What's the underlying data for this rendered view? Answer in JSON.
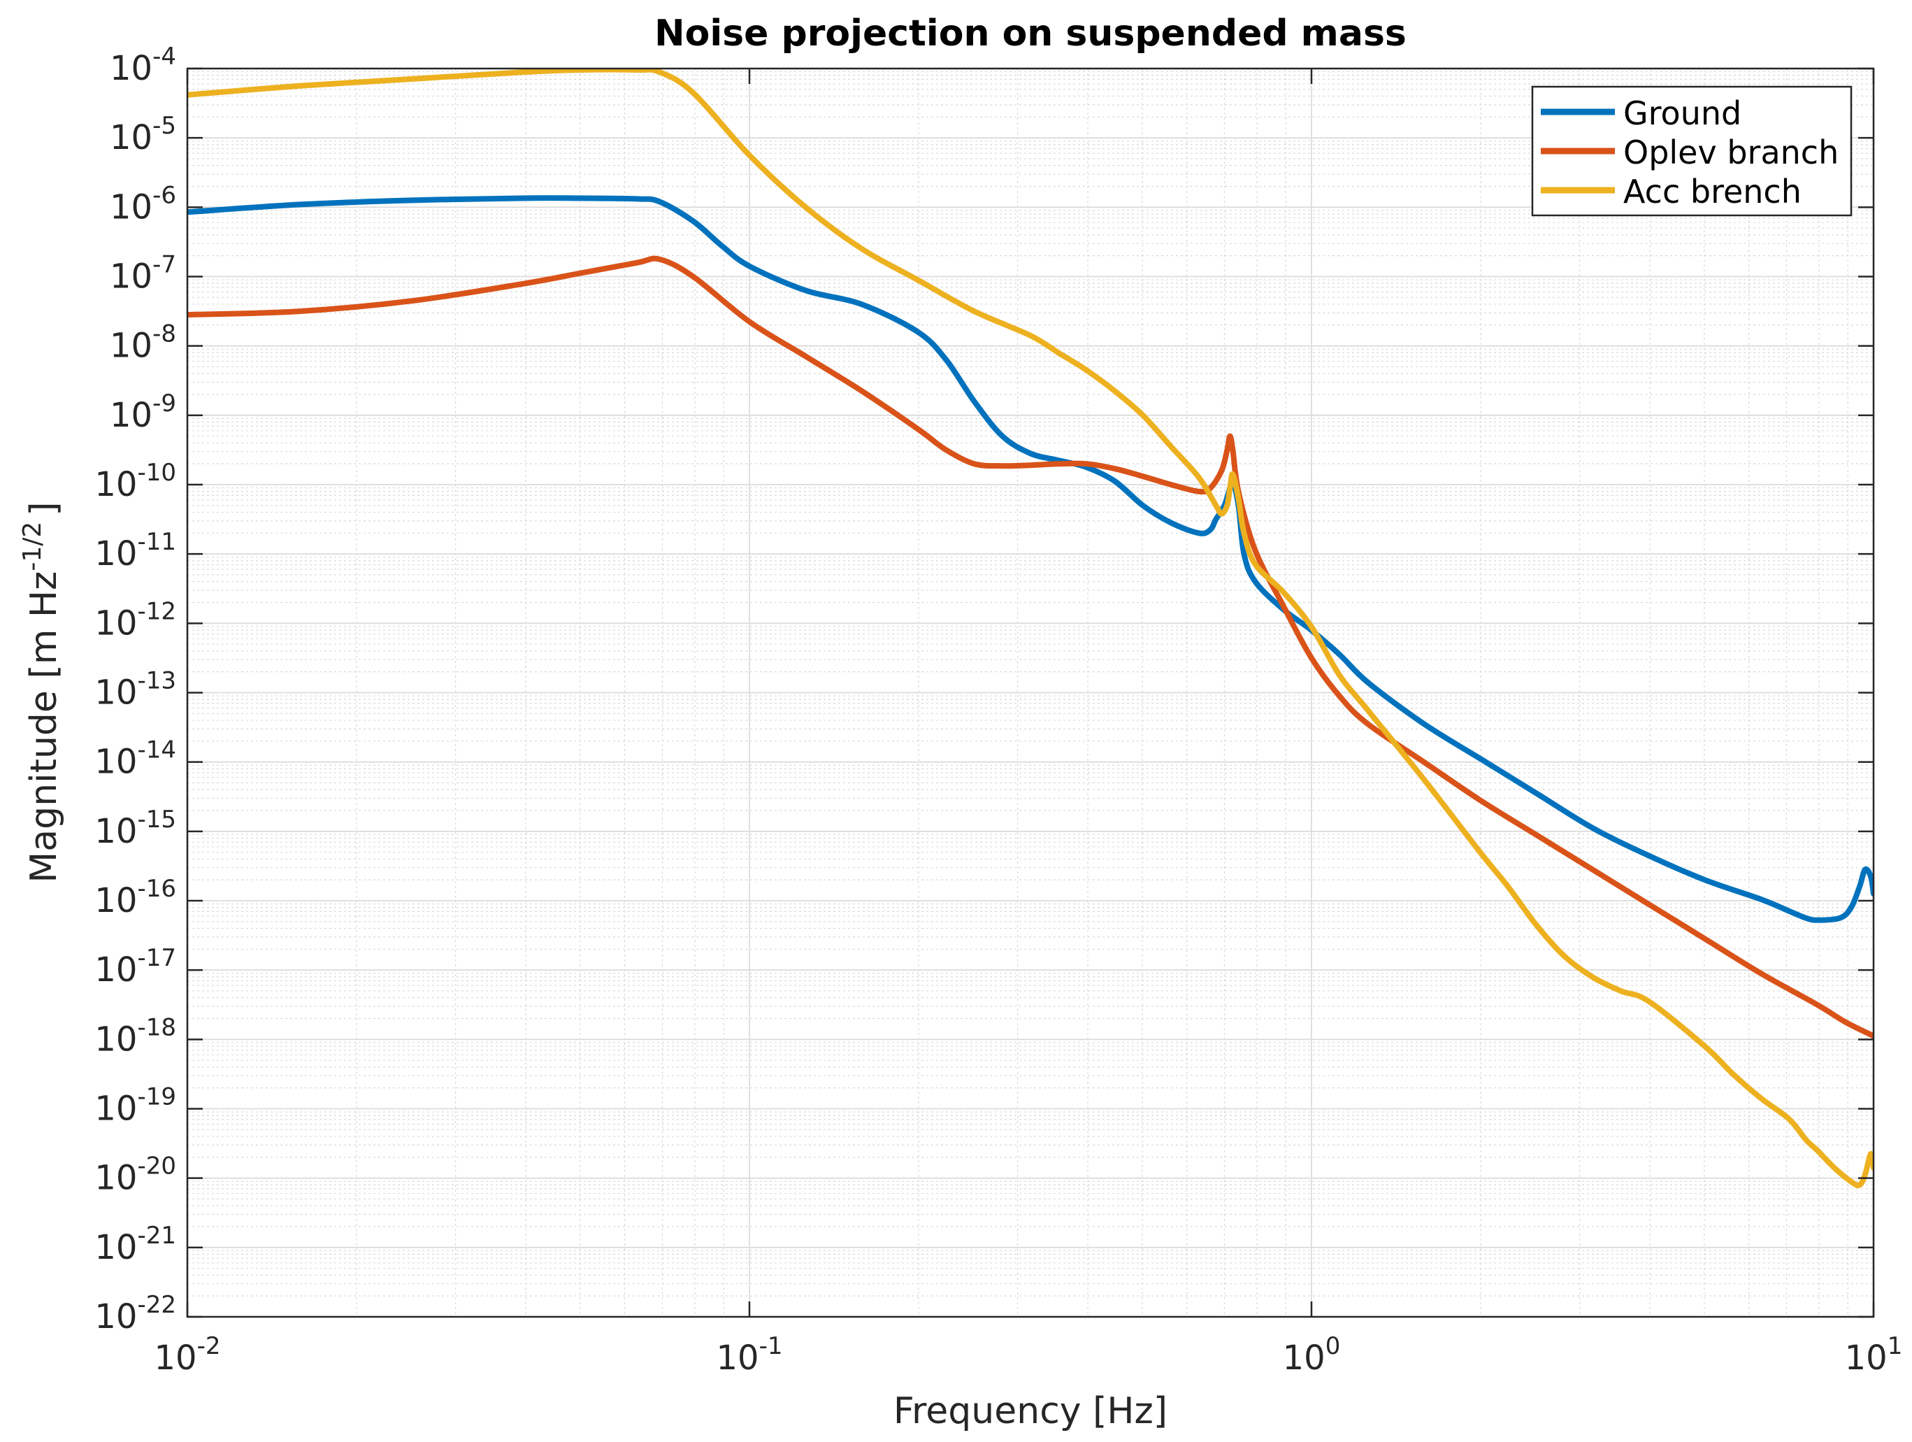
{
  "chart_data": {
    "type": "line",
    "title": "Noise projection on suspended mass",
    "xlabel": "Frequency [Hz]",
    "ylabel": {
      "prefix": "Magnitude [m Hz",
      "superscript": "-1/2",
      "suffix": "]"
    },
    "xscale": "log",
    "yscale": "log",
    "xlim": [
      0.01,
      10
    ],
    "ylim": [
      1e-22,
      0.0001
    ],
    "grid": true,
    "minor_grid": true,
    "legend_location": "top-right",
    "x_ticks": [
      {
        "base": "10",
        "exp": "-2",
        "value": 0.01
      },
      {
        "base": "10",
        "exp": "-1",
        "value": 0.1
      },
      {
        "base": "10",
        "exp": "0",
        "value": 1
      },
      {
        "base": "10",
        "exp": "1",
        "value": 10
      }
    ],
    "y_ticks": [
      {
        "base": "10",
        "exp": "-4",
        "value": -4
      },
      {
        "base": "10",
        "exp": "-5",
        "value": -5
      },
      {
        "base": "10",
        "exp": "-6",
        "value": -6
      },
      {
        "base": "10",
        "exp": "-7",
        "value": -7
      },
      {
        "base": "10",
        "exp": "-8",
        "value": -8
      },
      {
        "base": "10",
        "exp": "-9",
        "value": -9
      },
      {
        "base": "10",
        "exp": "-10",
        "value": -10
      },
      {
        "base": "10",
        "exp": "-11",
        "value": -11
      },
      {
        "base": "10",
        "exp": "-12",
        "value": -12
      },
      {
        "base": "10",
        "exp": "-13",
        "value": -13
      },
      {
        "base": "10",
        "exp": "-14",
        "value": -14
      },
      {
        "base": "10",
        "exp": "-15",
        "value": -15
      },
      {
        "base": "10",
        "exp": "-16",
        "value": -16
      },
      {
        "base": "10",
        "exp": "-17",
        "value": -17
      },
      {
        "base": "10",
        "exp": "-18",
        "value": -18
      },
      {
        "base": "10",
        "exp": "-19",
        "value": -19
      },
      {
        "base": "10",
        "exp": "-20",
        "value": -20
      },
      {
        "base": "10",
        "exp": "-21",
        "value": -21
      },
      {
        "base": "10",
        "exp": "-22",
        "value": -22
      }
    ],
    "series": [
      {
        "name": "Ground",
        "color": "#0072BD",
        "log10_x": [
          -2.0,
          -1.8,
          -1.6,
          -1.4,
          -1.3,
          -1.2,
          -1.16,
          -1.1,
          -1.05,
          -1.0,
          -0.9,
          -0.8,
          -0.7,
          -0.65,
          -0.6,
          -0.55,
          -0.5,
          -0.45,
          -0.4,
          -0.35,
          -0.3,
          -0.25,
          -0.2,
          -0.18,
          -0.17,
          -0.155,
          -0.145,
          -0.14,
          -0.13,
          -0.12,
          -0.1,
          -0.05,
          0.0,
          0.05,
          0.1,
          0.2,
          0.3,
          0.4,
          0.5,
          0.6,
          0.7,
          0.8,
          0.85,
          0.88,
          0.9,
          0.94,
          0.96,
          0.975,
          0.985,
          0.995,
          1.0
        ],
        "log10_y": [
          -6.07,
          -5.96,
          -5.9,
          -5.87,
          -5.87,
          -5.88,
          -5.92,
          -6.2,
          -6.55,
          -6.85,
          -7.2,
          -7.4,
          -7.8,
          -8.2,
          -8.8,
          -9.3,
          -9.55,
          -9.65,
          -9.75,
          -9.95,
          -10.3,
          -10.55,
          -10.7,
          -10.65,
          -10.5,
          -10.3,
          -10.05,
          -9.95,
          -10.3,
          -11.0,
          -11.4,
          -11.8,
          -12.1,
          -12.45,
          -12.85,
          -13.45,
          -13.95,
          -14.45,
          -14.95,
          -15.35,
          -15.7,
          -15.98,
          -16.15,
          -16.25,
          -16.28,
          -16.25,
          -16.1,
          -15.8,
          -15.55,
          -15.65,
          -15.9
        ]
      },
      {
        "name": "Oplev branch",
        "color": "#D95319",
        "log10_x": [
          -2.0,
          -1.8,
          -1.6,
          -1.4,
          -1.3,
          -1.2,
          -1.16,
          -1.1,
          -1.0,
          -0.9,
          -0.8,
          -0.7,
          -0.65,
          -0.6,
          -0.55,
          -0.5,
          -0.45,
          -0.4,
          -0.35,
          -0.3,
          -0.25,
          -0.2,
          -0.18,
          -0.16,
          -0.15,
          -0.145,
          -0.14,
          -0.13,
          -0.1,
          -0.05,
          0.0,
          0.05,
          0.1,
          0.2,
          0.3,
          0.4,
          0.5,
          0.6,
          0.7,
          0.8,
          0.9,
          0.95,
          1.0
        ],
        "log10_y": [
          -7.55,
          -7.5,
          -7.35,
          -7.1,
          -6.95,
          -6.8,
          -6.75,
          -7.0,
          -7.65,
          -8.15,
          -8.65,
          -9.2,
          -9.5,
          -9.7,
          -9.73,
          -9.72,
          -9.7,
          -9.7,
          -9.77,
          -9.88,
          -10.0,
          -10.1,
          -10.05,
          -9.8,
          -9.5,
          -9.3,
          -9.5,
          -10.1,
          -10.95,
          -11.75,
          -12.5,
          -13.05,
          -13.45,
          -14.0,
          -14.55,
          -15.05,
          -15.55,
          -16.05,
          -16.55,
          -17.05,
          -17.5,
          -17.75,
          -17.95
        ]
      },
      {
        "name": "Acc brench",
        "color": "#EDB120",
        "log10_x": [
          -2.0,
          -1.8,
          -1.6,
          -1.4,
          -1.3,
          -1.2,
          -1.16,
          -1.1,
          -1.0,
          -0.9,
          -0.8,
          -0.7,
          -0.6,
          -0.5,
          -0.45,
          -0.4,
          -0.35,
          -0.3,
          -0.25,
          -0.2,
          -0.17,
          -0.16,
          -0.15,
          -0.145,
          -0.14,
          -0.13,
          -0.12,
          -0.1,
          -0.05,
          0.0,
          0.05,
          0.1,
          0.2,
          0.3,
          0.35,
          0.4,
          0.45,
          0.5,
          0.55,
          0.6,
          0.7,
          0.75,
          0.8,
          0.85,
          0.88,
          0.9,
          0.93,
          0.96,
          0.975,
          0.985,
          0.995,
          1.0
        ],
        "log10_y": [
          -4.38,
          -4.25,
          -4.15,
          -4.05,
          -4.02,
          -4.02,
          -4.05,
          -4.35,
          -5.25,
          -6.0,
          -6.6,
          -7.05,
          -7.5,
          -7.85,
          -8.1,
          -8.35,
          -8.65,
          -9.0,
          -9.45,
          -9.9,
          -10.3,
          -10.42,
          -10.3,
          -10.05,
          -9.85,
          -10.2,
          -10.7,
          -11.15,
          -11.55,
          -12.05,
          -12.75,
          -13.25,
          -14.25,
          -15.3,
          -15.8,
          -16.35,
          -16.8,
          -17.1,
          -17.3,
          -17.45,
          -18.1,
          -18.5,
          -18.85,
          -19.15,
          -19.45,
          -19.6,
          -19.85,
          -20.05,
          -20.1,
          -19.95,
          -19.65,
          -19.85
        ]
      }
    ]
  }
}
